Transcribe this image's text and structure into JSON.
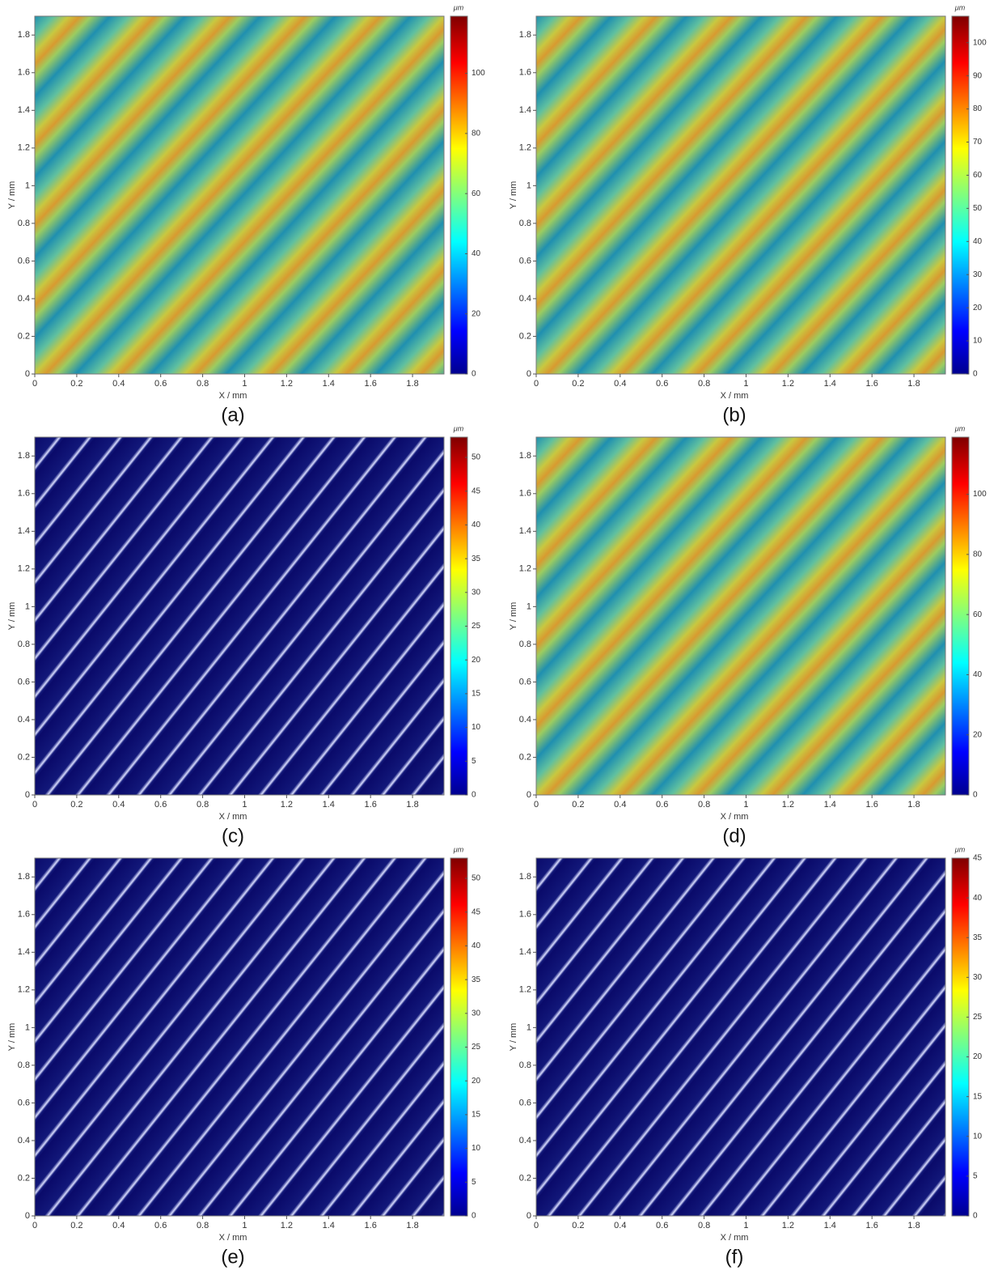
{
  "chart_data": [
    {
      "type": "heatmap",
      "caption": "(a)",
      "xlabel": "X / mm",
      "ylabel": "Y / mm",
      "xlim": [
        0,
        1.95
      ],
      "ylim": [
        0,
        1.9
      ],
      "xticks": [
        0,
        0.2,
        0.4,
        0.6,
        0.8,
        1,
        1.2,
        1.4,
        1.6,
        1.8
      ],
      "yticks": [
        0,
        0.2,
        0.4,
        0.6,
        0.8,
        1,
        1.2,
        1.4,
        1.6,
        1.8
      ],
      "colorbar": {
        "unit": "μm",
        "lim": [
          0,
          119
        ],
        "ticks": [
          0,
          20,
          40,
          60,
          80,
          100
        ]
      }
    },
    {
      "type": "heatmap",
      "caption": "(b)",
      "xlabel": "X / mm",
      "ylabel": "Y / mm",
      "xlim": [
        0,
        1.95
      ],
      "ylim": [
        0,
        1.9
      ],
      "xticks": [
        0,
        0.2,
        0.4,
        0.6,
        0.8,
        1,
        1.2,
        1.4,
        1.6,
        1.8
      ],
      "yticks": [
        0,
        0.2,
        0.4,
        0.6,
        0.8,
        1,
        1.2,
        1.4,
        1.6,
        1.8
      ],
      "colorbar": {
        "unit": "μm",
        "lim": [
          0,
          108
        ],
        "ticks": [
          0,
          10,
          20,
          30,
          40,
          50,
          60,
          70,
          80,
          90,
          100
        ]
      }
    },
    {
      "type": "heatmap",
      "caption": "(c)",
      "xlabel": "X / mm",
      "ylabel": "Y / mm",
      "xlim": [
        0,
        1.95
      ],
      "ylim": [
        0,
        1.9
      ],
      "xticks": [
        0,
        0.2,
        0.4,
        0.6,
        0.8,
        1,
        1.2,
        1.4,
        1.6,
        1.8
      ],
      "yticks": [
        0,
        0.2,
        0.4,
        0.6,
        0.8,
        1,
        1.2,
        1.4,
        1.6,
        1.8
      ],
      "colorbar": {
        "unit": "μm",
        "lim": [
          0,
          53
        ],
        "ticks": [
          0,
          5,
          10,
          15,
          20,
          25,
          30,
          35,
          40,
          45,
          50
        ]
      }
    },
    {
      "type": "heatmap",
      "caption": "(d)",
      "xlabel": "X / mm",
      "ylabel": "Y / mm",
      "xlim": [
        0,
        1.95
      ],
      "ylim": [
        0,
        1.9
      ],
      "xticks": [
        0,
        0.2,
        0.4,
        0.6,
        0.8,
        1,
        1.2,
        1.4,
        1.6,
        1.8
      ],
      "yticks": [
        0,
        0.2,
        0.4,
        0.6,
        0.8,
        1,
        1.2,
        1.4,
        1.6,
        1.8
      ],
      "colorbar": {
        "unit": "μm",
        "lim": [
          0,
          119
        ],
        "ticks": [
          0,
          20,
          40,
          60,
          80,
          100
        ]
      }
    },
    {
      "type": "heatmap",
      "caption": "(e)",
      "xlabel": "X / mm",
      "ylabel": "Y / mm",
      "xlim": [
        0,
        1.95
      ],
      "ylim": [
        0,
        1.9
      ],
      "xticks": [
        0,
        0.2,
        0.4,
        0.6,
        0.8,
        1,
        1.2,
        1.4,
        1.6,
        1.8
      ],
      "yticks": [
        0,
        0.2,
        0.4,
        0.6,
        0.8,
        1,
        1.2,
        1.4,
        1.6,
        1.8
      ],
      "colorbar": {
        "unit": "μm",
        "lim": [
          0,
          53
        ],
        "ticks": [
          0,
          5,
          10,
          15,
          20,
          25,
          30,
          35,
          40,
          45,
          50
        ]
      }
    },
    {
      "type": "heatmap",
      "caption": "(f)",
      "xlabel": "X / mm",
      "ylabel": "Y / mm",
      "xlim": [
        0,
        1.95
      ],
      "ylim": [
        0,
        1.9
      ],
      "xticks": [
        0,
        0.2,
        0.4,
        0.6,
        0.8,
        1,
        1.2,
        1.4,
        1.6,
        1.8
      ],
      "yticks": [
        0,
        0.2,
        0.4,
        0.6,
        0.8,
        1,
        1.2,
        1.4,
        1.6,
        1.8
      ],
      "colorbar": {
        "unit": "μm",
        "lim": [
          0,
          45
        ],
        "ticks": [
          0,
          5,
          10,
          15,
          20,
          25,
          30,
          35,
          40,
          45
        ]
      }
    }
  ]
}
